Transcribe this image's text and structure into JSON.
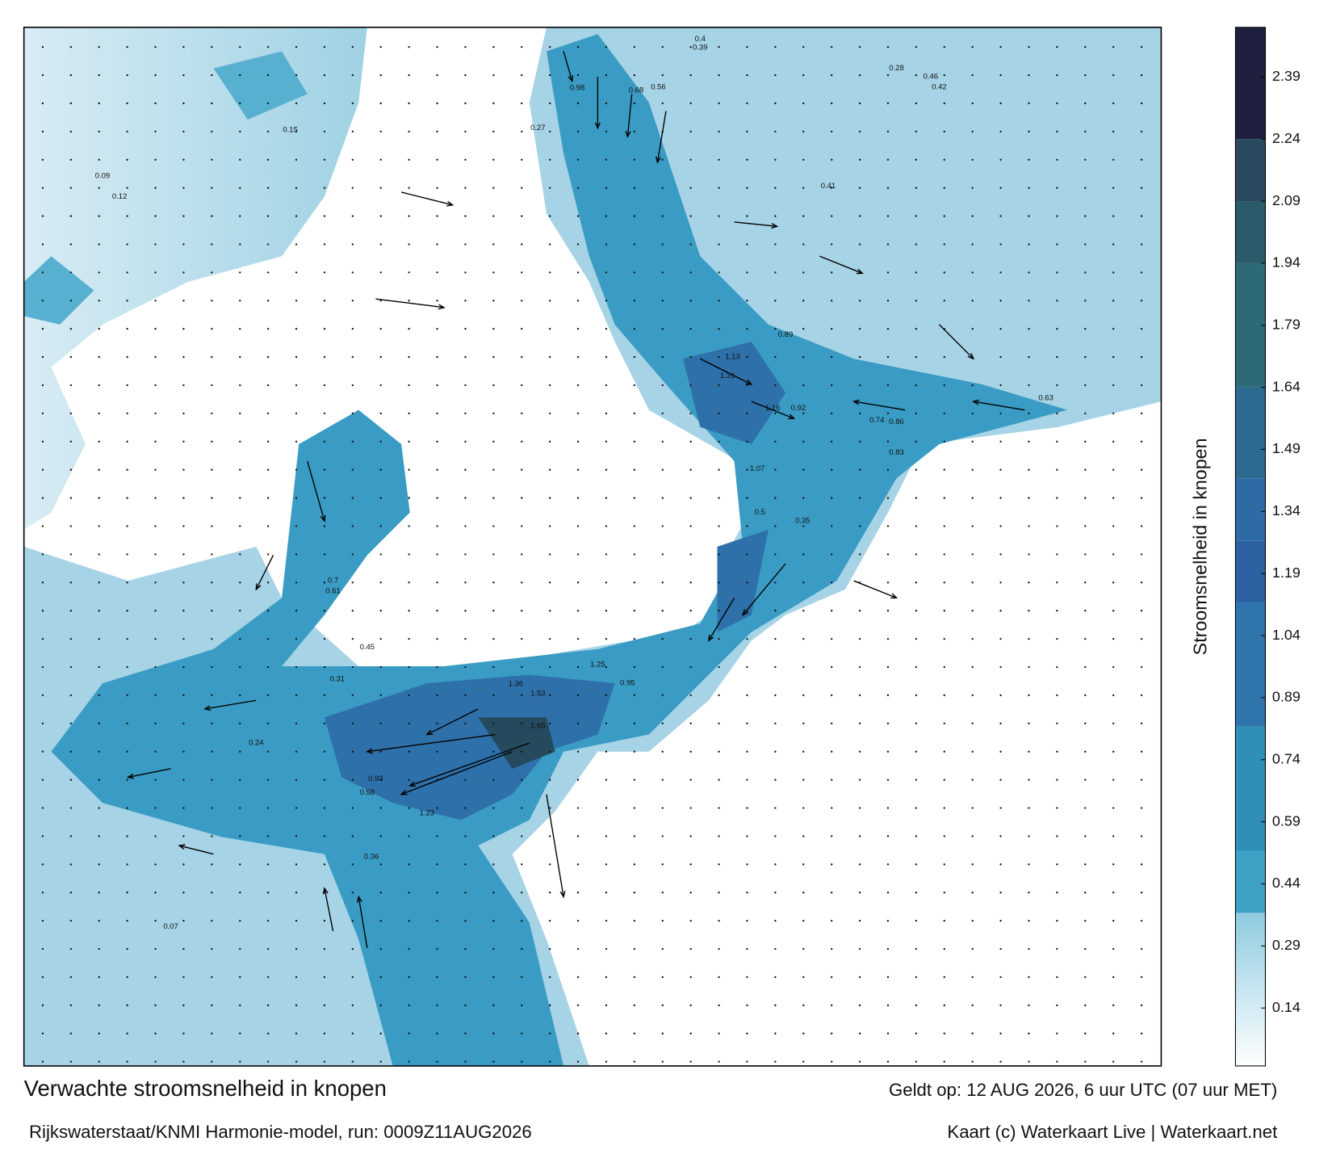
{
  "title": "Verwachte stroomsnelheid in knopen",
  "source": "Rijkswaterstaat/KNMI Harmonie-model, run: 0009Z11AUG2026",
  "valid": "Geldt op: 12 AUG 2026, 6 uur UTC (07 uur MET)",
  "credit": "Kaart (c) Waterkaart Live | Waterkaart.net",
  "colorbar": {
    "label": "Stroomsnelheid in knopen",
    "lim": [
      0,
      2.51
    ],
    "ticks": [
      0.14,
      0.29,
      0.44,
      0.59,
      0.74,
      0.89,
      1.04,
      1.19,
      1.34,
      1.49,
      1.64,
      1.79,
      1.94,
      2.09,
      2.24,
      2.39
    ],
    "bands": [
      {
        "from": 0,
        "to": 0.37,
        "color": "#8ecbe0"
      },
      {
        "from": 0.37,
        "to": 0.52,
        "color": "#3ea2c7"
      },
      {
        "from": 0.52,
        "to": 0.82,
        "color": "#2f8fb9"
      },
      {
        "from": 0.82,
        "to": 1.12,
        "color": "#2e74ad"
      },
      {
        "from": 1.12,
        "to": 1.27,
        "color": "#2d62a2"
      },
      {
        "from": 1.27,
        "to": 1.42,
        "color": "#2e6aa5"
      },
      {
        "from": 1.42,
        "to": 1.64,
        "color": "#2c6a92"
      },
      {
        "from": 1.64,
        "to": 1.94,
        "color": "#2c6a7a"
      },
      {
        "from": 1.94,
        "to": 2.09,
        "color": "#2b5b6a"
      },
      {
        "from": 2.09,
        "to": 2.24,
        "color": "#29495e"
      },
      {
        "from": 2.24,
        "to": 2.51,
        "color": "#1f1f40"
      }
    ]
  },
  "map_labels": [
    "0.98",
    "0.68",
    "0.56",
    "0.4",
    "0.39",
    "0.28",
    "0.46",
    "0.42",
    "1.13",
    "1.31",
    "1.16",
    "0.89",
    "0.74",
    "0.86",
    "0.83",
    "0.92",
    "1.07",
    "0.5",
    "0.35",
    "1.36",
    "1.53",
    "1.65",
    "1.25",
    "0.93",
    "0.95",
    "0.7",
    "0.61",
    "0.45",
    "0.27",
    "0.15",
    "0.12",
    "0.07",
    "0.09",
    "0.24",
    "0.31",
    "0.63",
    "0.41",
    "1.23",
    "0.58",
    "0.36"
  ]
}
